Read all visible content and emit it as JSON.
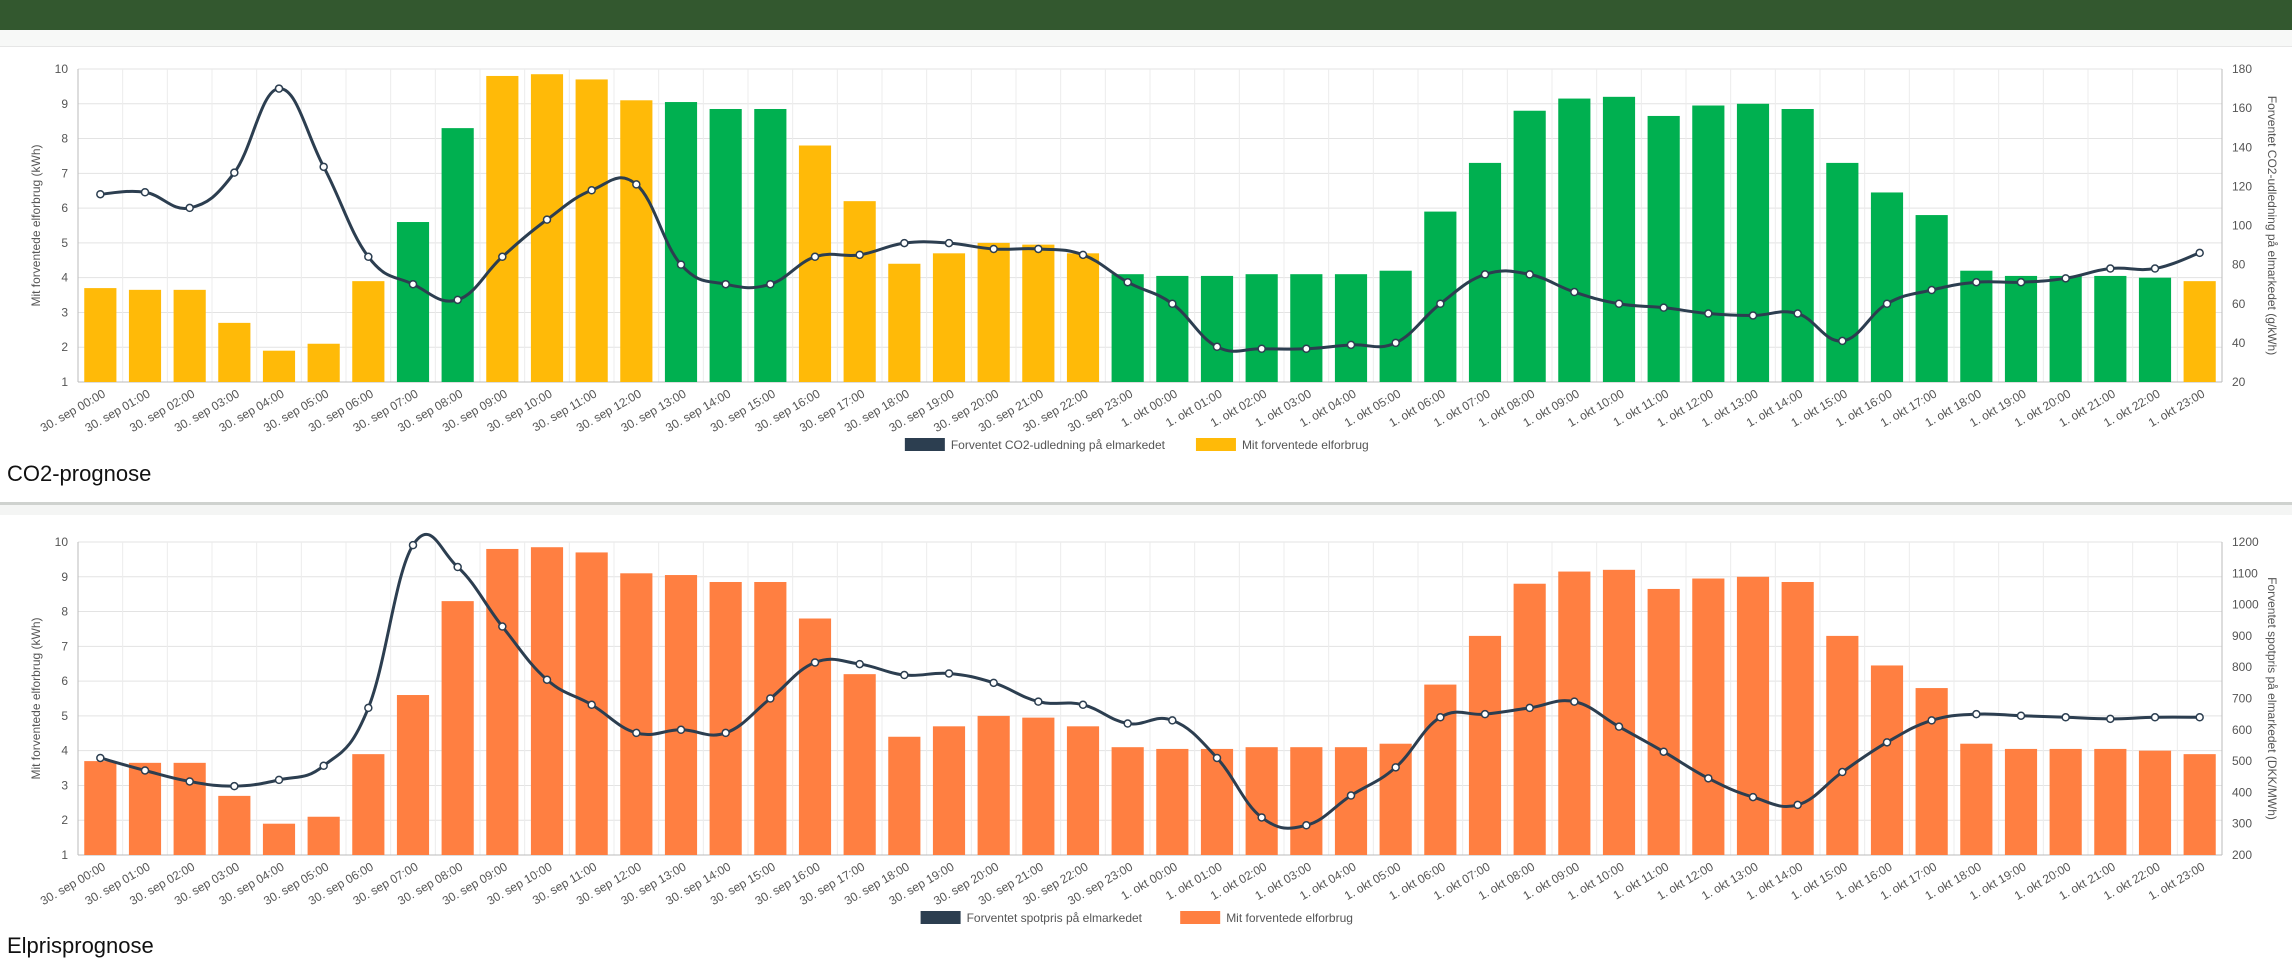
{
  "header": {
    "bar_color": "#33582f"
  },
  "sections": [
    {
      "title": "CO2-prognose"
    },
    {
      "title": "Elprisprognose"
    }
  ],
  "x_labels": [
    "30. sep 00:00",
    "30. sep 01:00",
    "30. sep 02:00",
    "30. sep 03:00",
    "30. sep 04:00",
    "30. sep 05:00",
    "30. sep 06:00",
    "30. sep 07:00",
    "30. sep 08:00",
    "30. sep 09:00",
    "30. sep 10:00",
    "30. sep 11:00",
    "30. sep 12:00",
    "30. sep 13:00",
    "30. sep 14:00",
    "30. sep 15:00",
    "30. sep 16:00",
    "30. sep 17:00",
    "30. sep 18:00",
    "30. sep 19:00",
    "30. sep 20:00",
    "30. sep 21:00",
    "30. sep 22:00",
    "30. sep 23:00",
    "1. okt 00:00",
    "1. okt 01:00",
    "1. okt 02:00",
    "1. okt 03:00",
    "1. okt 04:00",
    "1. okt 05:00",
    "1. okt 06:00",
    "1. okt 07:00",
    "1. okt 08:00",
    "1. okt 09:00",
    "1. okt 10:00",
    "1. okt 11:00",
    "1. okt 12:00",
    "1. okt 13:00",
    "1. okt 14:00",
    "1. okt 15:00",
    "1. okt 16:00",
    "1. okt 17:00",
    "1. okt 18:00",
    "1. okt 19:00",
    "1. okt 20:00",
    "1. okt 21:00",
    "1. okt 22:00",
    "1. okt 23:00"
  ],
  "chart_data": [
    {
      "type": "bar",
      "combo_line": true,
      "grid": true,
      "legend_position": "bottom",
      "ylabel_left": "Mit forventede elforbrug (kWh)",
      "ylabel_right": "Forventet CO2-udledning på elmarkedet (g/kWh)",
      "ylim_left": [
        1,
        10
      ],
      "yticks_left": [
        1,
        2,
        3,
        4,
        5,
        6,
        7,
        8,
        9,
        10
      ],
      "ylim_right": [
        20,
        180
      ],
      "yticks_right": [
        20,
        40,
        60,
        80,
        100,
        120,
        140,
        160,
        180
      ],
      "line_series": {
        "name": "Forventet CO2-udledning på elmarkedet",
        "color": "#2c3e50",
        "values": [
          116,
          117,
          109,
          127,
          170,
          130,
          84,
          70,
          62,
          84,
          103,
          118,
          121,
          80,
          70,
          70,
          84,
          85,
          91,
          91,
          88,
          88,
          85,
          71,
          60,
          38,
          37,
          37,
          39,
          40,
          60,
          75,
          75,
          66,
          60,
          58,
          55,
          54,
          55,
          41,
          60,
          67,
          71,
          71,
          73,
          78,
          78,
          86
        ]
      },
      "bar_series": {
        "name": "Mit forventede elforbrug",
        "legend_color": "#ffba08",
        "values": [
          3.7,
          3.65,
          3.65,
          2.7,
          1.9,
          2.1,
          3.9,
          5.6,
          8.3,
          9.8,
          9.85,
          9.7,
          9.1,
          9.05,
          8.85,
          8.85,
          7.8,
          6.2,
          4.4,
          4.7,
          5.0,
          4.95,
          4.7,
          4.1,
          4.05,
          4.05,
          4.1,
          4.1,
          4.1,
          4.2,
          5.9,
          7.3,
          8.8,
          9.15,
          9.2,
          8.65,
          8.95,
          9.0,
          8.85,
          7.3,
          6.45,
          5.8,
          4.2,
          4.05,
          4.05,
          4.05,
          4.0,
          3.9
        ],
        "colors": [
          "#ffba08",
          "#ffba08",
          "#ffba08",
          "#ffba08",
          "#ffba08",
          "#ffba08",
          "#ffba08",
          "#00b050",
          "#00b050",
          "#ffba08",
          "#ffba08",
          "#ffba08",
          "#ffba08",
          "#00b050",
          "#00b050",
          "#00b050",
          "#ffba08",
          "#ffba08",
          "#ffba08",
          "#ffba08",
          "#ffba08",
          "#ffba08",
          "#ffba08",
          "#00b050",
          "#00b050",
          "#00b050",
          "#00b050",
          "#00b050",
          "#00b050",
          "#00b050",
          "#00b050",
          "#00b050",
          "#00b050",
          "#00b050",
          "#00b050",
          "#00b050",
          "#00b050",
          "#00b050",
          "#00b050",
          "#00b050",
          "#00b050",
          "#00b050",
          "#00b050",
          "#00b050",
          "#00b050",
          "#00b050",
          "#00b050",
          "#ffba08"
        ]
      }
    },
    {
      "type": "bar",
      "combo_line": true,
      "grid": true,
      "legend_position": "bottom",
      "ylabel_left": "Mit forventede elforbrug (kWh)",
      "ylabel_right": "Forventet spotpris på elmarkedet (DKK/MWh)",
      "ylim_left": [
        1,
        10
      ],
      "yticks_left": [
        1,
        2,
        3,
        4,
        5,
        6,
        7,
        8,
        9,
        10
      ],
      "ylim_right": [
        200,
        1200
      ],
      "yticks_right": [
        200,
        300,
        400,
        500,
        600,
        700,
        800,
        900,
        1000,
        1100,
        1200
      ],
      "line_series": {
        "name": "Forventet spotpris på elmarkedet",
        "color": "#2c3e50",
        "values": [
          510,
          470,
          435,
          420,
          440,
          485,
          670,
          1190,
          1120,
          930,
          760,
          680,
          590,
          600,
          590,
          700,
          815,
          810,
          775,
          780,
          750,
          690,
          680,
          620,
          630,
          510,
          320,
          295,
          390,
          480,
          640,
          650,
          670,
          690,
          610,
          530,
          445,
          385,
          360,
          465,
          560,
          630,
          650,
          645,
          640,
          635,
          640,
          640
        ]
      },
      "bar_series": {
        "name": "Mit forventede elforbrug",
        "legend_color": "#ff7f41",
        "values": [
          3.7,
          3.65,
          3.65,
          2.7,
          1.9,
          2.1,
          3.9,
          5.6,
          8.3,
          9.8,
          9.85,
          9.7,
          9.1,
          9.05,
          8.85,
          8.85,
          7.8,
          6.2,
          4.4,
          4.7,
          5.0,
          4.95,
          4.7,
          4.1,
          4.05,
          4.05,
          4.1,
          4.1,
          4.1,
          4.2,
          5.9,
          7.3,
          8.8,
          9.15,
          9.2,
          8.65,
          8.95,
          9.0,
          8.85,
          7.3,
          6.45,
          5.8,
          4.2,
          4.05,
          4.05,
          4.05,
          4.0,
          3.9
        ],
        "color": "#ff7f41"
      }
    }
  ]
}
